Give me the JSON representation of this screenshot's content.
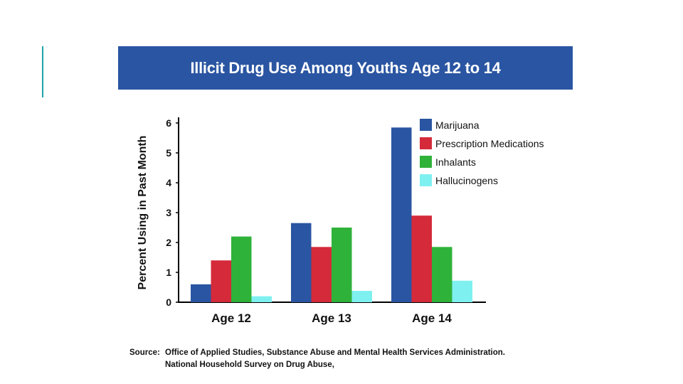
{
  "chart_data": {
    "type": "bar",
    "title": "Illicit Drug Use Among Youths Age 12 to 14",
    "xlabel": "",
    "ylabel": "Percent Using in Past Month",
    "ylim": [
      0,
      6
    ],
    "yticks": [
      "0",
      "1",
      "2",
      "3",
      "4",
      "5",
      "6"
    ],
    "categories": [
      "Age 12",
      "Age 13",
      "Age 14"
    ],
    "series": [
      {
        "name": "Marijuana",
        "color": "#2a55a2",
        "values": [
          0.6,
          2.65,
          5.85
        ]
      },
      {
        "name": "Prescription Medications",
        "color": "#d42a3a",
        "values": [
          1.4,
          1.85,
          2.9
        ]
      },
      {
        "name": "Inhalants",
        "color": "#2fb23a",
        "values": [
          2.2,
          2.5,
          1.85
        ]
      },
      {
        "name": "Hallucinogens",
        "color": "#7ff0f0",
        "values": [
          0.2,
          0.38,
          0.72
        ]
      }
    ],
    "legend_position": "top-right",
    "grid": false
  },
  "source": {
    "label": "Source:",
    "line1": "Office of Applied Studies, Substance Abuse and Mental Health Services Administration.",
    "line2": "National Household Survey on Drug Abuse,"
  }
}
